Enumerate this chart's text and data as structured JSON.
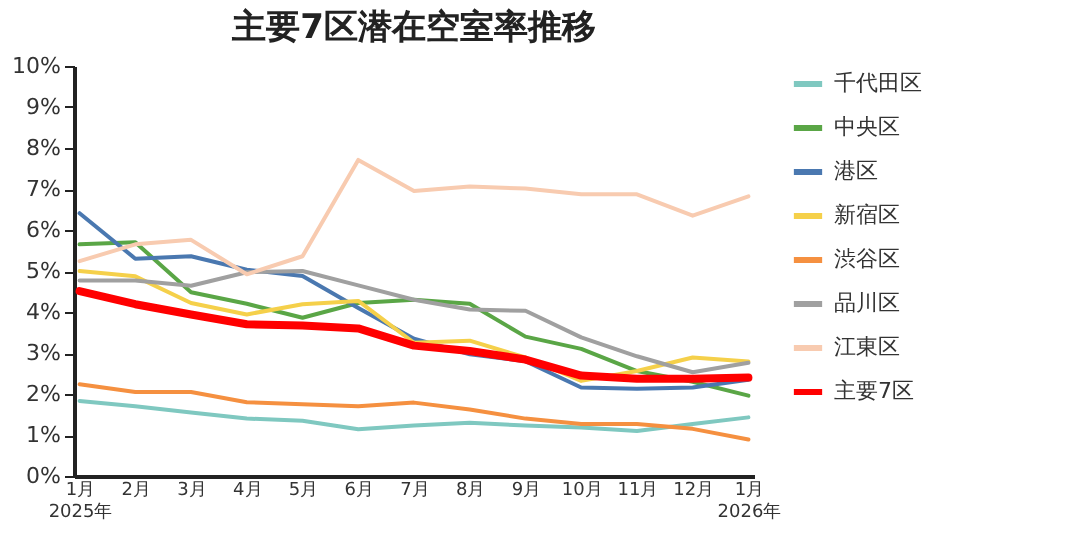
{
  "chart_data": {
    "type": "line",
    "title": "主要7区潜在空室率推移",
    "categories": [
      "1月\n2025年",
      "2月",
      "3月",
      "4月",
      "5月",
      "6月",
      "7月",
      "8月",
      "9月",
      "10月",
      "11月",
      "12月",
      "1月\n2026年"
    ],
    "ylim": [
      0,
      10
    ],
    "yticks": [
      {
        "value": 0,
        "label": "0%"
      },
      {
        "value": 1,
        "label": "1%"
      },
      {
        "value": 2,
        "label": "2%"
      },
      {
        "value": 3,
        "label": "3%"
      },
      {
        "value": 4,
        "label": "4%"
      },
      {
        "value": 5,
        "label": "5%"
      },
      {
        "value": 6,
        "label": "6%"
      },
      {
        "value": 7,
        "label": "7%"
      },
      {
        "value": 8,
        "label": "8%"
      },
      {
        "value": 9,
        "label": "9%"
      },
      {
        "value": 10,
        "label": "10%"
      }
    ],
    "grid": false,
    "legend": "right",
    "marker": "none",
    "line_style": "solid",
    "series": [
      {
        "name": "千代田区",
        "color": "#7fc8c0",
        "values": [
          1.83,
          1.7,
          1.55,
          1.4,
          1.35,
          1.14,
          1.23,
          1.3,
          1.23,
          1.18,
          1.1,
          1.27,
          1.43
        ]
      },
      {
        "name": "中央区",
        "color": "#5aa646",
        "values": [
          5.65,
          5.7,
          4.48,
          4.2,
          3.86,
          4.22,
          4.3,
          4.2,
          3.4,
          3.1,
          2.56,
          2.3,
          1.96
        ]
      },
      {
        "name": "港区",
        "color": "#4a78b0",
        "values": [
          6.41,
          5.3,
          5.36,
          5.03,
          4.88,
          4.1,
          3.35,
          2.97,
          2.8,
          2.16,
          2.13,
          2.16,
          2.35
        ]
      },
      {
        "name": "新宿区",
        "color": "#f5d04a",
        "values": [
          5.0,
          4.87,
          4.22,
          3.94,
          4.19,
          4.27,
          3.25,
          3.3,
          2.89,
          2.32,
          2.56,
          2.89,
          2.79
        ]
      },
      {
        "name": "渋谷区",
        "color": "#f59040",
        "values": [
          2.24,
          2.05,
          2.05,
          1.8,
          1.75,
          1.7,
          1.79,
          1.62,
          1.4,
          1.27,
          1.27,
          1.15,
          0.89
        ]
      },
      {
        "name": "品川区",
        "color": "#a0a0a0",
        "values": [
          4.77,
          4.77,
          4.64,
          4.97,
          5.0,
          4.65,
          4.3,
          4.06,
          4.03,
          3.38,
          2.92,
          2.53,
          2.76
        ]
      },
      {
        "name": "江東区",
        "color": "#f8cbb0",
        "values": [
          5.24,
          5.65,
          5.76,
          4.92,
          5.36,
          7.71,
          6.95,
          7.06,
          7.01,
          6.87,
          6.87,
          6.35,
          6.82
        ]
      },
      {
        "name": "主要7区",
        "color": "#ff0000",
        "values": [
          4.51,
          4.19,
          3.94,
          3.7,
          3.67,
          3.6,
          3.18,
          3.05,
          2.84,
          2.45,
          2.37,
          2.37,
          2.4
        ]
      }
    ]
  }
}
